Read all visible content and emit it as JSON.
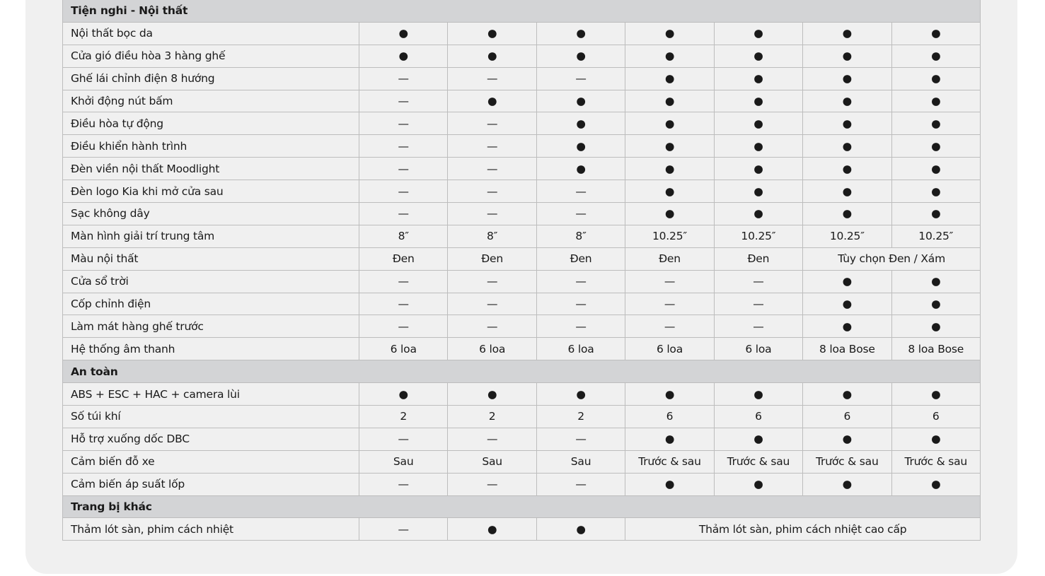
{
  "sections": [
    {
      "title": "Tiện nghi - Nội thất",
      "rows": [
        {
          "label": "Nội thất bọc da",
          "values": [
            "●",
            "●",
            "●",
            "●",
            "●",
            "●",
            "●"
          ]
        },
        {
          "label": "Cửa gió điều hòa 3 hàng ghế",
          "values": [
            "●",
            "●",
            "●",
            "●",
            "●",
            "●",
            "●"
          ]
        },
        {
          "label": "Ghế lái chỉnh điện 8 hướng",
          "values": [
            "—",
            "—",
            "—",
            "●",
            "●",
            "●",
            "●"
          ]
        },
        {
          "label": "Khởi động nút bấm",
          "values": [
            "—",
            "●",
            "●",
            "●",
            "●",
            "●",
            "●"
          ]
        },
        {
          "label": "Điều hòa tự động",
          "values": [
            "—",
            "—",
            "●",
            "●",
            "●",
            "●",
            "●"
          ]
        },
        {
          "label": "Điều khiển hành trình",
          "values": [
            "—",
            "—",
            "●",
            "●",
            "●",
            "●",
            "●"
          ]
        },
        {
          "label": "Đèn viền nội thất Moodlight",
          "values": [
            "—",
            "—",
            "●",
            "●",
            "●",
            "●",
            "●"
          ]
        },
        {
          "label": "Đèn logo Kia khi mở cửa sau",
          "values": [
            "—",
            "—",
            "—",
            "●",
            "●",
            "●",
            "●"
          ]
        },
        {
          "label": "Sạc không dây",
          "values": [
            "—",
            "—",
            "—",
            "●",
            "●",
            "●",
            "●"
          ]
        },
        {
          "label": "Màn hình giải trí trung tâm",
          "values": [
            "8″",
            "8″",
            "8″",
            "10.25″",
            "10.25″",
            "10.25″",
            "10.25″"
          ]
        },
        {
          "label": "Màu nội thất",
          "values": [
            "Đen",
            "Đen",
            "Đen",
            "Đen",
            "Đen",
            {
              "text": "Tùy chọn Đen / Xám",
              "span": 2
            }
          ]
        },
        {
          "label": "Cửa sổ trời",
          "values": [
            "—",
            "—",
            "—",
            "—",
            "—",
            "●",
            "●"
          ]
        },
        {
          "label": "Cốp chỉnh điện",
          "values": [
            "—",
            "—",
            "—",
            "—",
            "—",
            "●",
            "●"
          ]
        },
        {
          "label": "Làm mát hàng ghế trước",
          "values": [
            "—",
            "—",
            "—",
            "—",
            "—",
            "●",
            "●"
          ]
        },
        {
          "label": "Hệ thống âm thanh",
          "values": [
            "6 loa",
            "6 loa",
            "6 loa",
            "6 loa",
            "6 loa",
            "8 loa Bose",
            "8 loa Bose"
          ]
        }
      ]
    },
    {
      "title": "An toàn",
      "rows": [
        {
          "label": "ABS + ESC + HAC + camera lùi",
          "values": [
            "●",
            "●",
            "●",
            "●",
            "●",
            "●",
            "●"
          ]
        },
        {
          "label": "Số túi khí",
          "values": [
            "2",
            "2",
            "2",
            "6",
            "6",
            "6",
            "6"
          ]
        },
        {
          "label": "Hỗ trợ xuống dốc DBC",
          "values": [
            "—",
            "—",
            "—",
            "●",
            "●",
            "●",
            "●"
          ]
        },
        {
          "label": "Cảm biến đỗ xe",
          "values": [
            "Sau",
            "Sau",
            "Sau",
            "Trước & sau",
            "Trước & sau",
            "Trước & sau",
            "Trước & sau"
          ]
        },
        {
          "label": "Cảm biến áp suất lốp",
          "values": [
            "—",
            "—",
            "—",
            "●",
            "●",
            "●",
            "●"
          ]
        }
      ]
    },
    {
      "title": "Trang bị khác",
      "rows": [
        {
          "label": "Thảm lót sàn, phim cách nhiệt",
          "values": [
            "—",
            "●",
            "●",
            {
              "text": "Thảm lót sàn, phim cách nhiệt cao cấp",
              "span": 4
            }
          ]
        }
      ]
    }
  ]
}
